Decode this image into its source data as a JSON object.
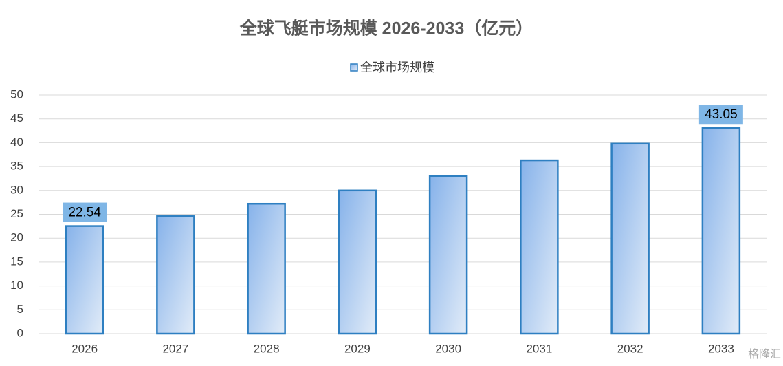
{
  "chart_data": {
    "type": "bar",
    "title": "全球飞艇市场规模 2026-2033（亿元）",
    "categories": [
      "2026",
      "2027",
      "2028",
      "2029",
      "2030",
      "2031",
      "2032",
      "2033"
    ],
    "series": [
      {
        "name": "全球市场规模",
        "color": "#2e7fc1",
        "values": [
          22.54,
          24.6,
          27.2,
          30.0,
          33.0,
          36.3,
          39.8,
          43.05
        ],
        "value_labels": [
          "22.54",
          null,
          null,
          null,
          null,
          null,
          null,
          "43.05"
        ]
      }
    ],
    "ylim": [
      0,
      50
    ],
    "yticks": [
      0,
      5,
      10,
      15,
      20,
      25,
      30,
      35,
      40,
      45,
      50
    ],
    "grid": true,
    "legend": "top",
    "watermark": "格隆汇"
  }
}
